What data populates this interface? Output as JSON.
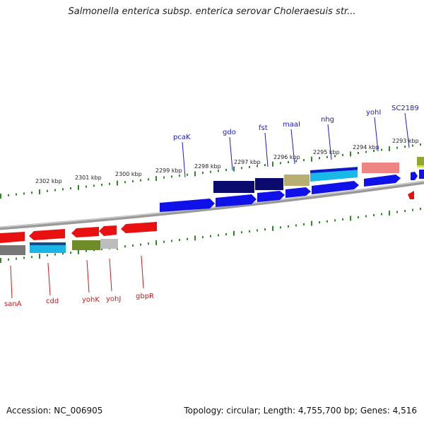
{
  "title": "Salmonella enterica subsp. enterica serovar Choleraesuis str...",
  "footer": {
    "accession": "Accession: NC_006905",
    "summary": "Topology: circular; Length: 4,755,700 bp; Genes: 4,516"
  },
  "colors": {
    "top_label": "#1a1acc",
    "bottom_label": "#cc1a1a",
    "tick": "#2e8b22",
    "backbone": "#8a8a8a"
  },
  "kbp_labels": [
    "2302 kbp",
    "2301 kbp",
    "2300 kbp",
    "2299 kbp",
    "2298 kbp",
    "2297 kbp",
    "2296 kbp",
    "2295 kbp",
    "2294 kbp",
    "2293 kbp"
  ],
  "top_gene_labels": [
    "pcaK",
    "gdo",
    "fst",
    "maaI",
    "nhg",
    "yohI",
    "SC2189"
  ],
  "bottom_gene_labels": [
    "sanA",
    "cdd",
    "yohK",
    "yohJ",
    "gbpR"
  ]
}
